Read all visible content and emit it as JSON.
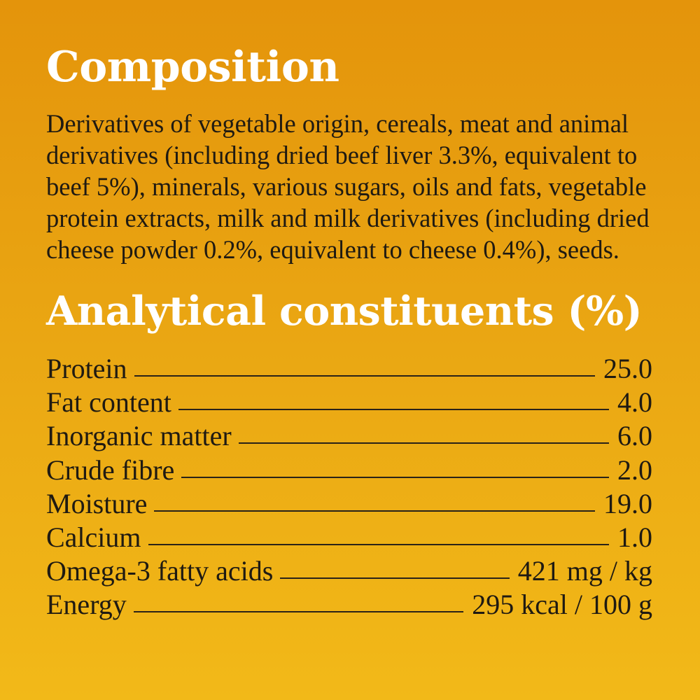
{
  "composition": {
    "title": "Composition",
    "text": "Derivatives of vegetable origin, cereals, meat and animal derivatives (including dried beef liver 3.3%, equivalent to beef 5%), minerals, various sugars, oils and fats, vegetable protein extracts, milk and milk derivatives (including dried cheese powder 0.2%, equivalent to cheese 0.4%), seeds."
  },
  "analytical": {
    "title": "Analytical constituents (%)",
    "rows": [
      {
        "name": "Protein",
        "value": "25.0"
      },
      {
        "name": "Fat content",
        "value": "4.0"
      },
      {
        "name": "Inorganic matter",
        "value": "6.0"
      },
      {
        "name": "Crude fibre",
        "value": "2.0"
      },
      {
        "name": "Moisture",
        "value": "19.0"
      },
      {
        "name": "Calcium",
        "value": "1.0"
      },
      {
        "name": "Omega-3 fatty acids",
        "value": "421 mg / kg"
      },
      {
        "name": "Energy",
        "value": "295 kcal / 100 g"
      }
    ]
  },
  "colors": {
    "background_top": "#E4940B",
    "background_bottom": "#F2B918",
    "heading": "#FFFFFF",
    "text": "#1F1A12"
  }
}
